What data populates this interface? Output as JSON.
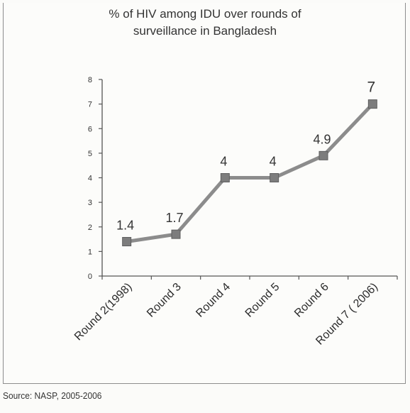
{
  "chart_data": {
    "type": "line",
    "title_lines": [
      "% of HIV among IDU over rounds of",
      "surveillance in Bangladesh"
    ],
    "categories": [
      "Round 2(1998)",
      "Round 3",
      "Round 4",
      "Round 5",
      "Round 6",
      "Round 7 ( 2006)"
    ],
    "series": [
      {
        "values": [
          1.4,
          1.7,
          4,
          4,
          4.9,
          7
        ],
        "data_labels": [
          "1.4",
          "1.7",
          "4",
          "4",
          "4.9",
          "7"
        ]
      }
    ],
    "ylim": [
      0,
      8
    ],
    "yticks": [
      0,
      1,
      2,
      3,
      4,
      5,
      6,
      7,
      8
    ],
    "grid": false,
    "legend": "none",
    "xlabel": "",
    "ylabel": "",
    "colors": {
      "line": "#8c8c8c",
      "marker": "#7d7d7d",
      "axis": "#555555"
    }
  },
  "source": "Source: NASP, 2005-2006"
}
